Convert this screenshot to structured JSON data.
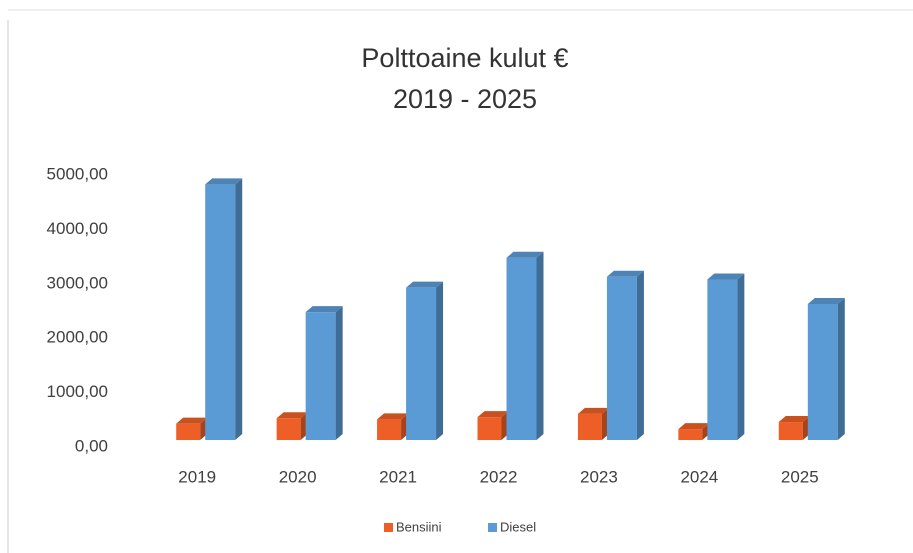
{
  "chart_data": {
    "type": "bar3d",
    "title": "Polttoaine kulut €",
    "subtitle": "2019 - 2025",
    "categories": [
      "2019",
      "2020",
      "2021",
      "2022",
      "2023",
      "2024",
      "2025"
    ],
    "series": [
      {
        "name": "Bensiini",
        "color": "#ed5f26",
        "values": [
          300,
          400,
          380,
          420,
          480,
          200,
          330
        ]
      },
      {
        "name": "Diesel",
        "color": "#5b9bd5",
        "values": [
          4700,
          2350,
          2800,
          3350,
          3000,
          2950,
          2500
        ]
      }
    ],
    "ylim": [
      0,
      5000
    ],
    "yticks": [
      {
        "value": 0,
        "label": "0,00"
      },
      {
        "value": 1000,
        "label": "1000,00"
      },
      {
        "value": 2000,
        "label": "2000,00"
      },
      {
        "value": 3000,
        "label": "3000,00"
      },
      {
        "value": 4000,
        "label": "4000,00"
      },
      {
        "value": 5000,
        "label": "5000,00"
      }
    ],
    "legend": "bottom"
  }
}
